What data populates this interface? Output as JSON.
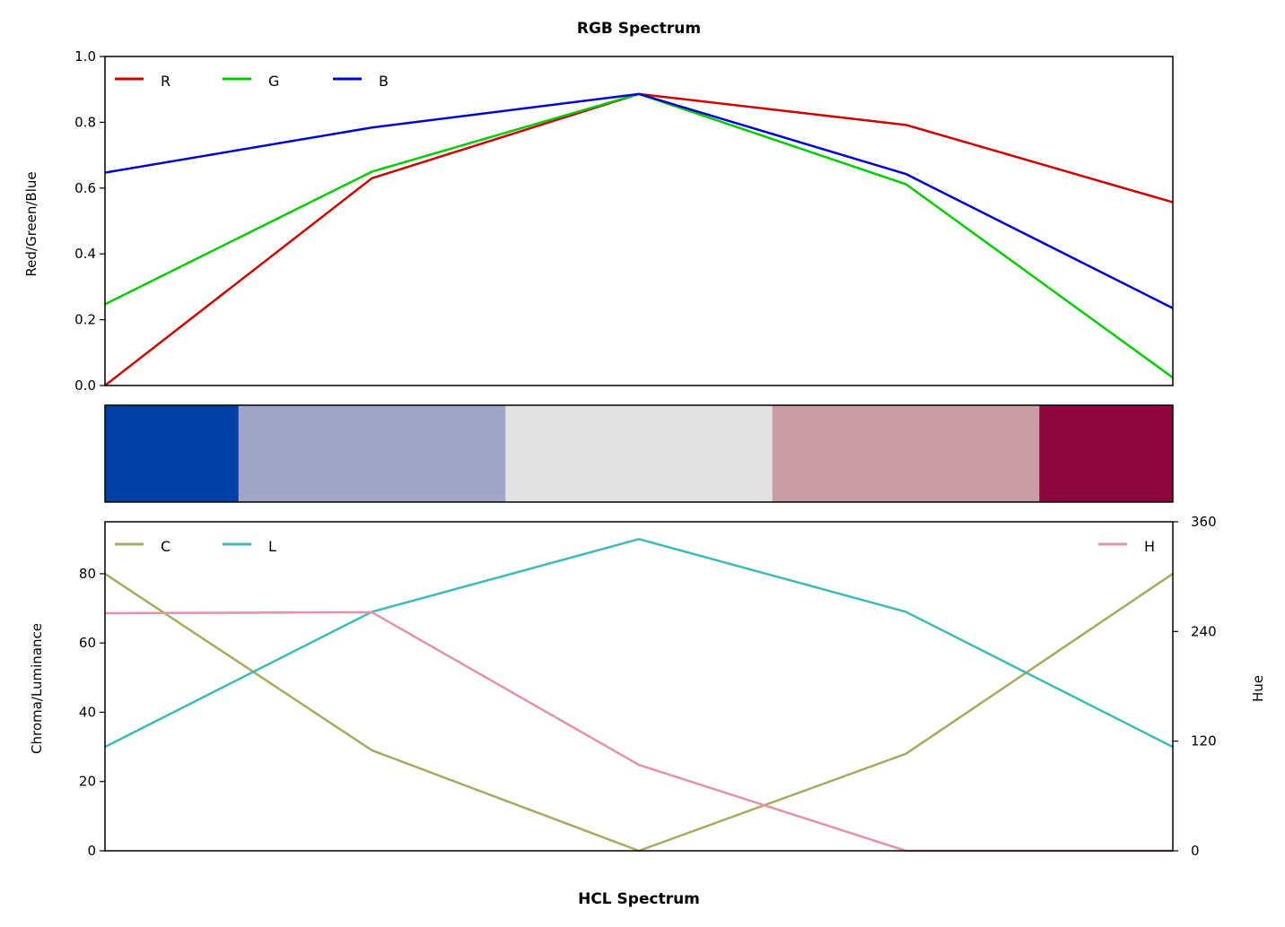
{
  "chart_data": [
    {
      "type": "line",
      "title": "RGB Spectrum",
      "ylabel": "Red/Green/Blue",
      "ylim": [
        0,
        1
      ],
      "yticks": [
        "0.0",
        "0.2",
        "0.4",
        "0.6",
        "0.8",
        "1.0"
      ],
      "x": [
        0,
        1,
        2,
        3,
        4
      ],
      "legend_position": "upper-left",
      "series": [
        {
          "name": "R",
          "color": "#cc0000",
          "values": [
            0.0,
            0.63,
            0.886,
            0.792,
            0.557
          ]
        },
        {
          "name": "G",
          "color": "#00cc00",
          "values": [
            0.247,
            0.65,
            0.886,
            0.612,
            0.024
          ]
        },
        {
          "name": "B",
          "color": "#0000cc",
          "values": [
            0.647,
            0.784,
            0.886,
            0.643,
            0.235
          ]
        }
      ]
    },
    {
      "type": "swatch",
      "colors": [
        "#023FA5",
        "#A1A6C8",
        "#E2E2E2",
        "#CA9CA4",
        "#8E063B"
      ]
    },
    {
      "type": "line",
      "title": "HCL Spectrum",
      "ylabel": "Chroma/Luminance",
      "y2label": "Hue",
      "ylim": [
        0,
        95
      ],
      "yticks": [
        "0",
        "20",
        "40",
        "60",
        "80"
      ],
      "y2lim": [
        0,
        360
      ],
      "y2ticks": [
        "0",
        "120",
        "240",
        "360"
      ],
      "x": [
        0,
        1,
        2,
        3,
        4
      ],
      "series": [
        {
          "name": "C",
          "color": "#a8ab5f",
          "axis": "left",
          "values": [
            80,
            29,
            0,
            28,
            80
          ]
        },
        {
          "name": "L",
          "color": "#3dbbb4",
          "axis": "left",
          "values": [
            30,
            69,
            90,
            69,
            30
          ]
        },
        {
          "name": "H",
          "color": "#e293a8",
          "axis": "right",
          "values": [
            260,
            261,
            94,
            0,
            0
          ]
        }
      ]
    }
  ]
}
